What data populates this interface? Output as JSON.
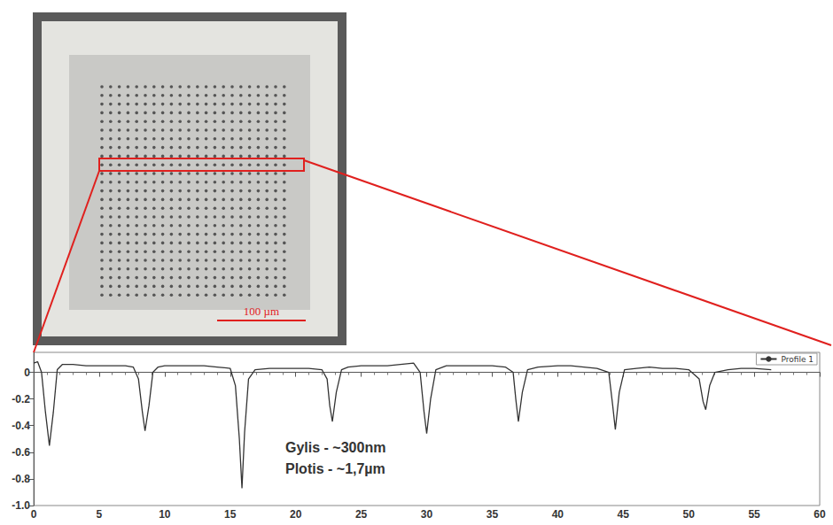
{
  "micrograph": {
    "scale_bar": "100 µm"
  },
  "chart_data": {
    "type": "line",
    "series": [
      {
        "name": "Profile 1",
        "color": "#333333",
        "x": [
          0,
          0.3,
          0.6,
          0.9,
          1.2,
          1.5,
          1.8,
          2.2,
          3,
          4,
          5,
          6,
          7,
          7.6,
          8.0,
          8.3,
          8.5,
          8.8,
          9.1,
          9.5,
          10,
          11,
          12,
          13,
          14,
          15,
          15.4,
          15.7,
          15.9,
          16.1,
          16.4,
          16.9,
          18,
          19,
          20,
          21,
          22,
          22.4,
          22.6,
          22.8,
          23.1,
          23.5,
          24,
          25,
          26,
          27,
          28,
          29,
          29.5,
          29.8,
          30.0,
          30.3,
          30.7,
          31.5,
          33,
          34,
          35,
          36,
          36.6,
          36.8,
          37.0,
          37.3,
          37.7,
          38.5,
          40,
          41,
          42,
          43,
          43.9,
          44.2,
          44.4,
          44.7,
          45.1,
          46,
          47,
          48,
          49,
          50,
          50.8,
          51.1,
          51.3,
          51.6,
          52,
          53,
          54,
          55,
          56.3
        ],
        "values": [
          0.07,
          0.08,
          0.0,
          -0.3,
          -0.55,
          -0.3,
          0.02,
          0.06,
          0.06,
          0.05,
          0.05,
          0.05,
          0.05,
          0.04,
          -0.05,
          -0.3,
          -0.44,
          -0.25,
          0.0,
          0.04,
          0.05,
          0.05,
          0.05,
          0.05,
          0.04,
          0.03,
          -0.1,
          -0.5,
          -0.87,
          -0.45,
          -0.05,
          0.02,
          0.03,
          0.03,
          0.03,
          0.03,
          0.02,
          -0.05,
          -0.25,
          -0.37,
          -0.15,
          0.02,
          0.04,
          0.05,
          0.05,
          0.05,
          0.06,
          0.07,
          0.0,
          -0.3,
          -0.46,
          -0.2,
          0.02,
          0.05,
          0.05,
          0.05,
          0.05,
          0.04,
          0.0,
          -0.2,
          -0.37,
          -0.15,
          0.02,
          0.04,
          0.05,
          0.05,
          0.04,
          0.03,
          0.0,
          -0.25,
          -0.43,
          -0.15,
          0.02,
          0.03,
          0.04,
          0.03,
          0.03,
          0.02,
          -0.05,
          -0.22,
          -0.28,
          -0.1,
          0.0,
          0.02,
          0.03,
          0.03,
          0.02
        ]
      }
    ],
    "xlim": [
      0,
      60
    ],
    "xticks": [
      0,
      5,
      10,
      15,
      20,
      25,
      30,
      35,
      40,
      45,
      50,
      55,
      60
    ],
    "ylim": [
      -1,
      0.15
    ],
    "yticks": [
      0,
      -0.2,
      -0.4,
      -0.6,
      -0.8,
      {
        "value": -1,
        "label": "-1.0"
      }
    ],
    "annotations": [
      "Gylis - ~300nm",
      "Plotis - ~1,7µm"
    ],
    "legend": "upper right",
    "grid": false
  }
}
